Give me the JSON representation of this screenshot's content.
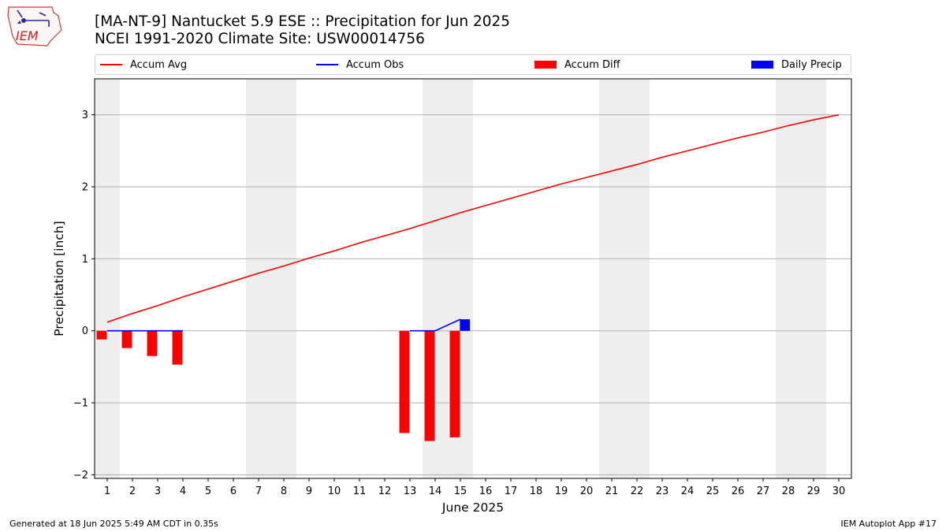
{
  "header": {
    "title_line1": "[MA-NT-9] Nantucket 5.9 ESE :: Precipitation for Jun 2025",
    "title_line2": "NCEI 1991-2020 Climate Site: USW00014756"
  },
  "logo": {
    "text": "IEM"
  },
  "legend": {
    "items": [
      {
        "label": "Accum Avg",
        "kind": "line",
        "color": "#ff0000"
      },
      {
        "label": "Accum Obs",
        "kind": "line",
        "color": "#0000ff"
      },
      {
        "label": "Accum Diff",
        "kind": "box",
        "color": "#ff0000"
      },
      {
        "label": "Daily Precip",
        "kind": "box",
        "color": "#0000ff"
      }
    ]
  },
  "footer": {
    "left": "Generated at 18 Jun 2025 5:49 AM CDT in 0.35s",
    "right": "IEM Autoplot App #17"
  },
  "chart_data": {
    "type": "bar",
    "xlabel": "June 2025",
    "ylabel": "Precipitation [inch]",
    "x": [
      1,
      2,
      3,
      4,
      5,
      6,
      7,
      8,
      9,
      10,
      11,
      12,
      13,
      14,
      15,
      16,
      17,
      18,
      19,
      20,
      21,
      22,
      23,
      24,
      25,
      26,
      27,
      28,
      29,
      30
    ],
    "xlim": [
      0.5,
      30.5
    ],
    "ylim": [
      -2.05,
      3.5
    ],
    "yticks": [
      -2,
      -1,
      0,
      1,
      2,
      3
    ],
    "ytick_labels": [
      "−2",
      "−1",
      "0",
      "1",
      "2",
      "3"
    ],
    "grid": "horizontal",
    "legend_position": "top",
    "weekend_shading": [
      [
        1,
        1
      ],
      [
        7,
        8
      ],
      [
        14,
        15
      ],
      [
        21,
        22
      ],
      [
        28,
        29
      ]
    ],
    "series": [
      {
        "name": "Accum Avg",
        "type": "line",
        "color": "#ff0000",
        "x": [
          1,
          2,
          3,
          4,
          5,
          6,
          7,
          8,
          9,
          10,
          11,
          12,
          13,
          14,
          15,
          16,
          17,
          18,
          19,
          20,
          21,
          22,
          23,
          24,
          25,
          26,
          27,
          28,
          29,
          30
        ],
        "values": [
          0.12,
          0.24,
          0.35,
          0.47,
          0.58,
          0.69,
          0.8,
          0.9,
          1.01,
          1.11,
          1.22,
          1.32,
          1.42,
          1.53,
          1.64,
          1.74,
          1.84,
          1.94,
          2.04,
          2.13,
          2.22,
          2.31,
          2.41,
          2.5,
          2.59,
          2.68,
          2.76,
          2.85,
          2.93,
          3.0
        ]
      },
      {
        "name": "Accum Obs",
        "type": "line",
        "color": "#0000ff",
        "x": [
          1,
          2,
          3,
          4,
          13,
          14,
          15
        ],
        "values": [
          0.0,
          0.0,
          0.0,
          0.0,
          0.0,
          0.0,
          0.16
        ]
      },
      {
        "name": "Accum Diff",
        "type": "bar",
        "color": "#ff0000",
        "x": [
          1,
          2,
          3,
          4,
          13,
          14,
          15
        ],
        "values": [
          -0.12,
          -0.24,
          -0.35,
          -0.47,
          -1.42,
          -1.53,
          -1.48
        ]
      },
      {
        "name": "Daily Precip",
        "type": "bar",
        "color": "#0000ff",
        "x": [
          15
        ],
        "values": [
          0.16
        ]
      }
    ]
  }
}
